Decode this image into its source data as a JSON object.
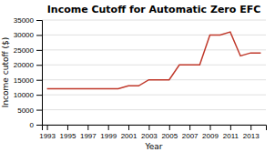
{
  "chart_data": {
    "type": "line",
    "title": "Income Cutoff for Automatic Zero EFC",
    "xlabel": "Year",
    "ylabel": "Income cutoff ($)",
    "x": [
      1993,
      1994,
      1995,
      1996,
      1997,
      1998,
      1999,
      2000,
      2001,
      2002,
      2003,
      2004,
      2005,
      2006,
      2007,
      2008,
      2009,
      2010,
      2011,
      2012,
      2013,
      2014
    ],
    "values": [
      12000,
      12000,
      12000,
      12000,
      12000,
      12000,
      12000,
      12000,
      13000,
      13000,
      15000,
      15000,
      15000,
      20000,
      20000,
      20000,
      30000,
      30000,
      31000,
      23000,
      24000,
      24000
    ],
    "color": "#c0392b",
    "xlim": [
      1992.5,
      2014.5
    ],
    "xticks": [
      1993,
      1995,
      1997,
      1999,
      2001,
      2003,
      2005,
      2007,
      2009,
      2011,
      2013
    ],
    "ylim": [
      0,
      35000
    ],
    "yticks": [
      0,
      5000,
      10000,
      15000,
      20000,
      25000,
      30000,
      35000
    ],
    "grid": true
  }
}
